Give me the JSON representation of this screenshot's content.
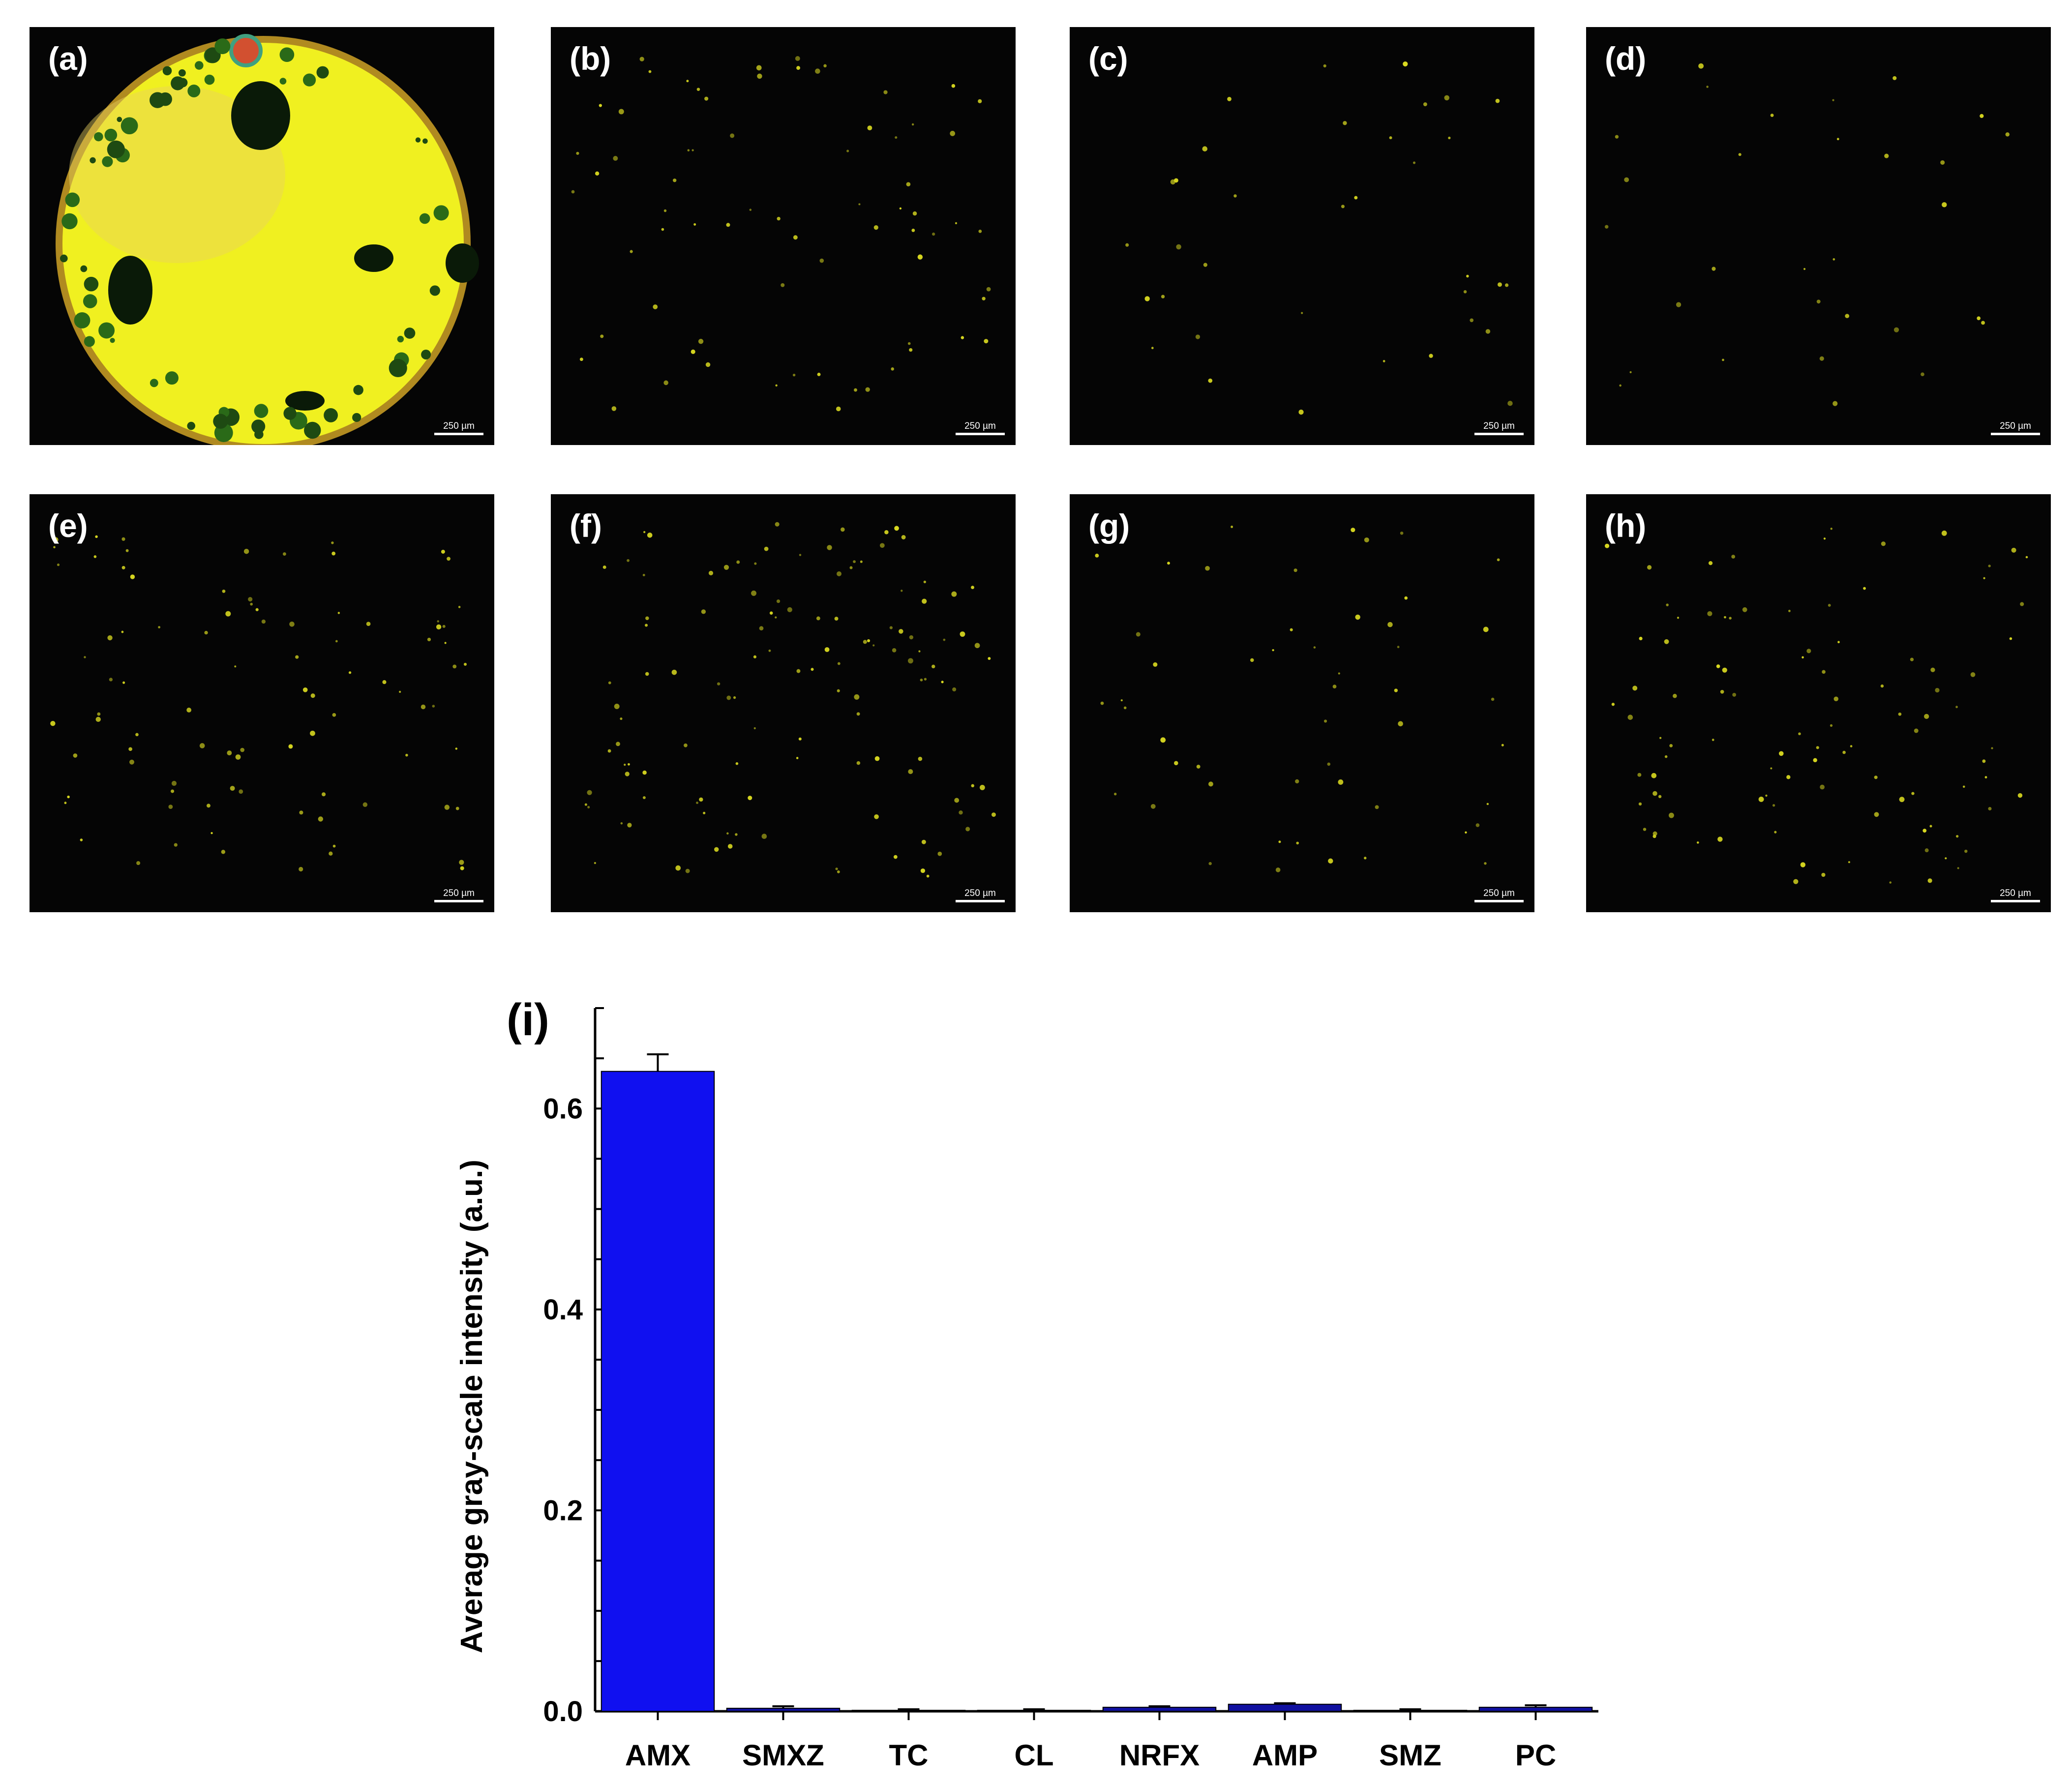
{
  "panels": [
    {
      "label": "(a)",
      "scale": "250 µm",
      "style": "bright"
    },
    {
      "label": "(b)",
      "scale": "250 µm",
      "style": "dark",
      "density": 70
    },
    {
      "label": "(c)",
      "scale": "250 µm",
      "style": "dark",
      "density": 35
    },
    {
      "label": "(d)",
      "scale": "250 µm",
      "style": "dark",
      "density": 30
    },
    {
      "label": "(e)",
      "scale": "250 µm",
      "style": "dark",
      "density": 90
    },
    {
      "label": "(f)",
      "scale": "250 µm",
      "style": "dark",
      "density": 120
    },
    {
      "label": "(g)",
      "scale": "250 µm",
      "style": "dark",
      "density": 50
    },
    {
      "label": "(h)",
      "scale": "250 µm",
      "style": "dark",
      "density": 100
    }
  ],
  "colors": {
    "bar": "#1010f0",
    "bar_dark": "#1010a0",
    "spot": "#d8d820",
    "bright_yellow": "#f0f020"
  },
  "chart_data": {
    "type": "bar",
    "panel_label": "(i)",
    "ylabel": "Average gray-scale intensity (a.u.)",
    "xlabel": "",
    "categories": [
      "AMX",
      "SMXZ",
      "TC",
      "CL",
      "NRFX",
      "AMP",
      "SMZ",
      "PC"
    ],
    "values": [
      0.637,
      0.003,
      0.001,
      0.001,
      0.004,
      0.007,
      0.001,
      0.004
    ],
    "errors": [
      0.017,
      0.002,
      0.001,
      0.001,
      0.001,
      0.001,
      0.001,
      0.002
    ],
    "ylim": [
      0,
      0.7
    ],
    "yticks": [
      0.0,
      0.2,
      0.4,
      0.6
    ],
    "ytick_labels": [
      "0.0",
      "0.2",
      "0.4",
      "0.6"
    ],
    "grid": false
  }
}
